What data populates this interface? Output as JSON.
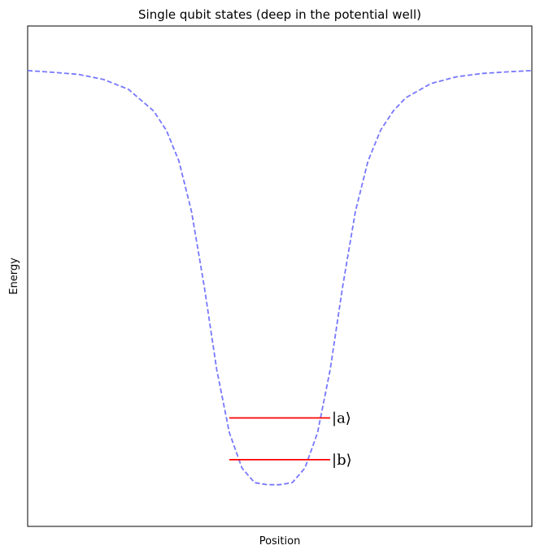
{
  "chart_data": {
    "type": "line",
    "title": "Single qubit states (deep in the potential well)",
    "xlabel": "Position",
    "ylabel": "Energy",
    "xlim": [
      -5,
      5
    ],
    "ylim": [
      -1.1,
      0.1
    ],
    "grid": false,
    "ticks": "none",
    "series": [
      {
        "style": "dashed",
        "color": "#7777ff",
        "x": [
          -5.0,
          -4.5,
          -4.0,
          -3.5,
          -3.0,
          -2.5,
          -2.25,
          -2.0,
          -1.75,
          -1.5,
          -1.25,
          -1.0,
          -0.75,
          -0.5,
          -0.25,
          0.0,
          0.25,
          0.5,
          0.75,
          1.0,
          1.25,
          1.5,
          1.75,
          2.0,
          2.25,
          2.5,
          3.0,
          3.5,
          4.0,
          4.5,
          5.0
        ],
        "y": [
          -0.007,
          -0.011,
          -0.016,
          -0.028,
          -0.052,
          -0.104,
          -0.15,
          -0.224,
          -0.345,
          -0.523,
          -0.724,
          -0.875,
          -0.96,
          -0.995,
          -1.0,
          -1.0,
          -0.995,
          -0.96,
          -0.875,
          -0.724,
          -0.523,
          -0.345,
          -0.224,
          -0.15,
          -0.104,
          -0.072,
          -0.038,
          -0.022,
          -0.014,
          -0.01,
          -0.007
        ]
      }
    ],
    "levels": [
      {
        "label": "|a⟩",
        "energy": -0.84,
        "x_range": [
          -1,
          1
        ],
        "color": "#ff0000"
      },
      {
        "label": "|b⟩",
        "energy": -0.94,
        "x_range": [
          -1,
          1
        ],
        "color": "#ff0000"
      }
    ]
  }
}
